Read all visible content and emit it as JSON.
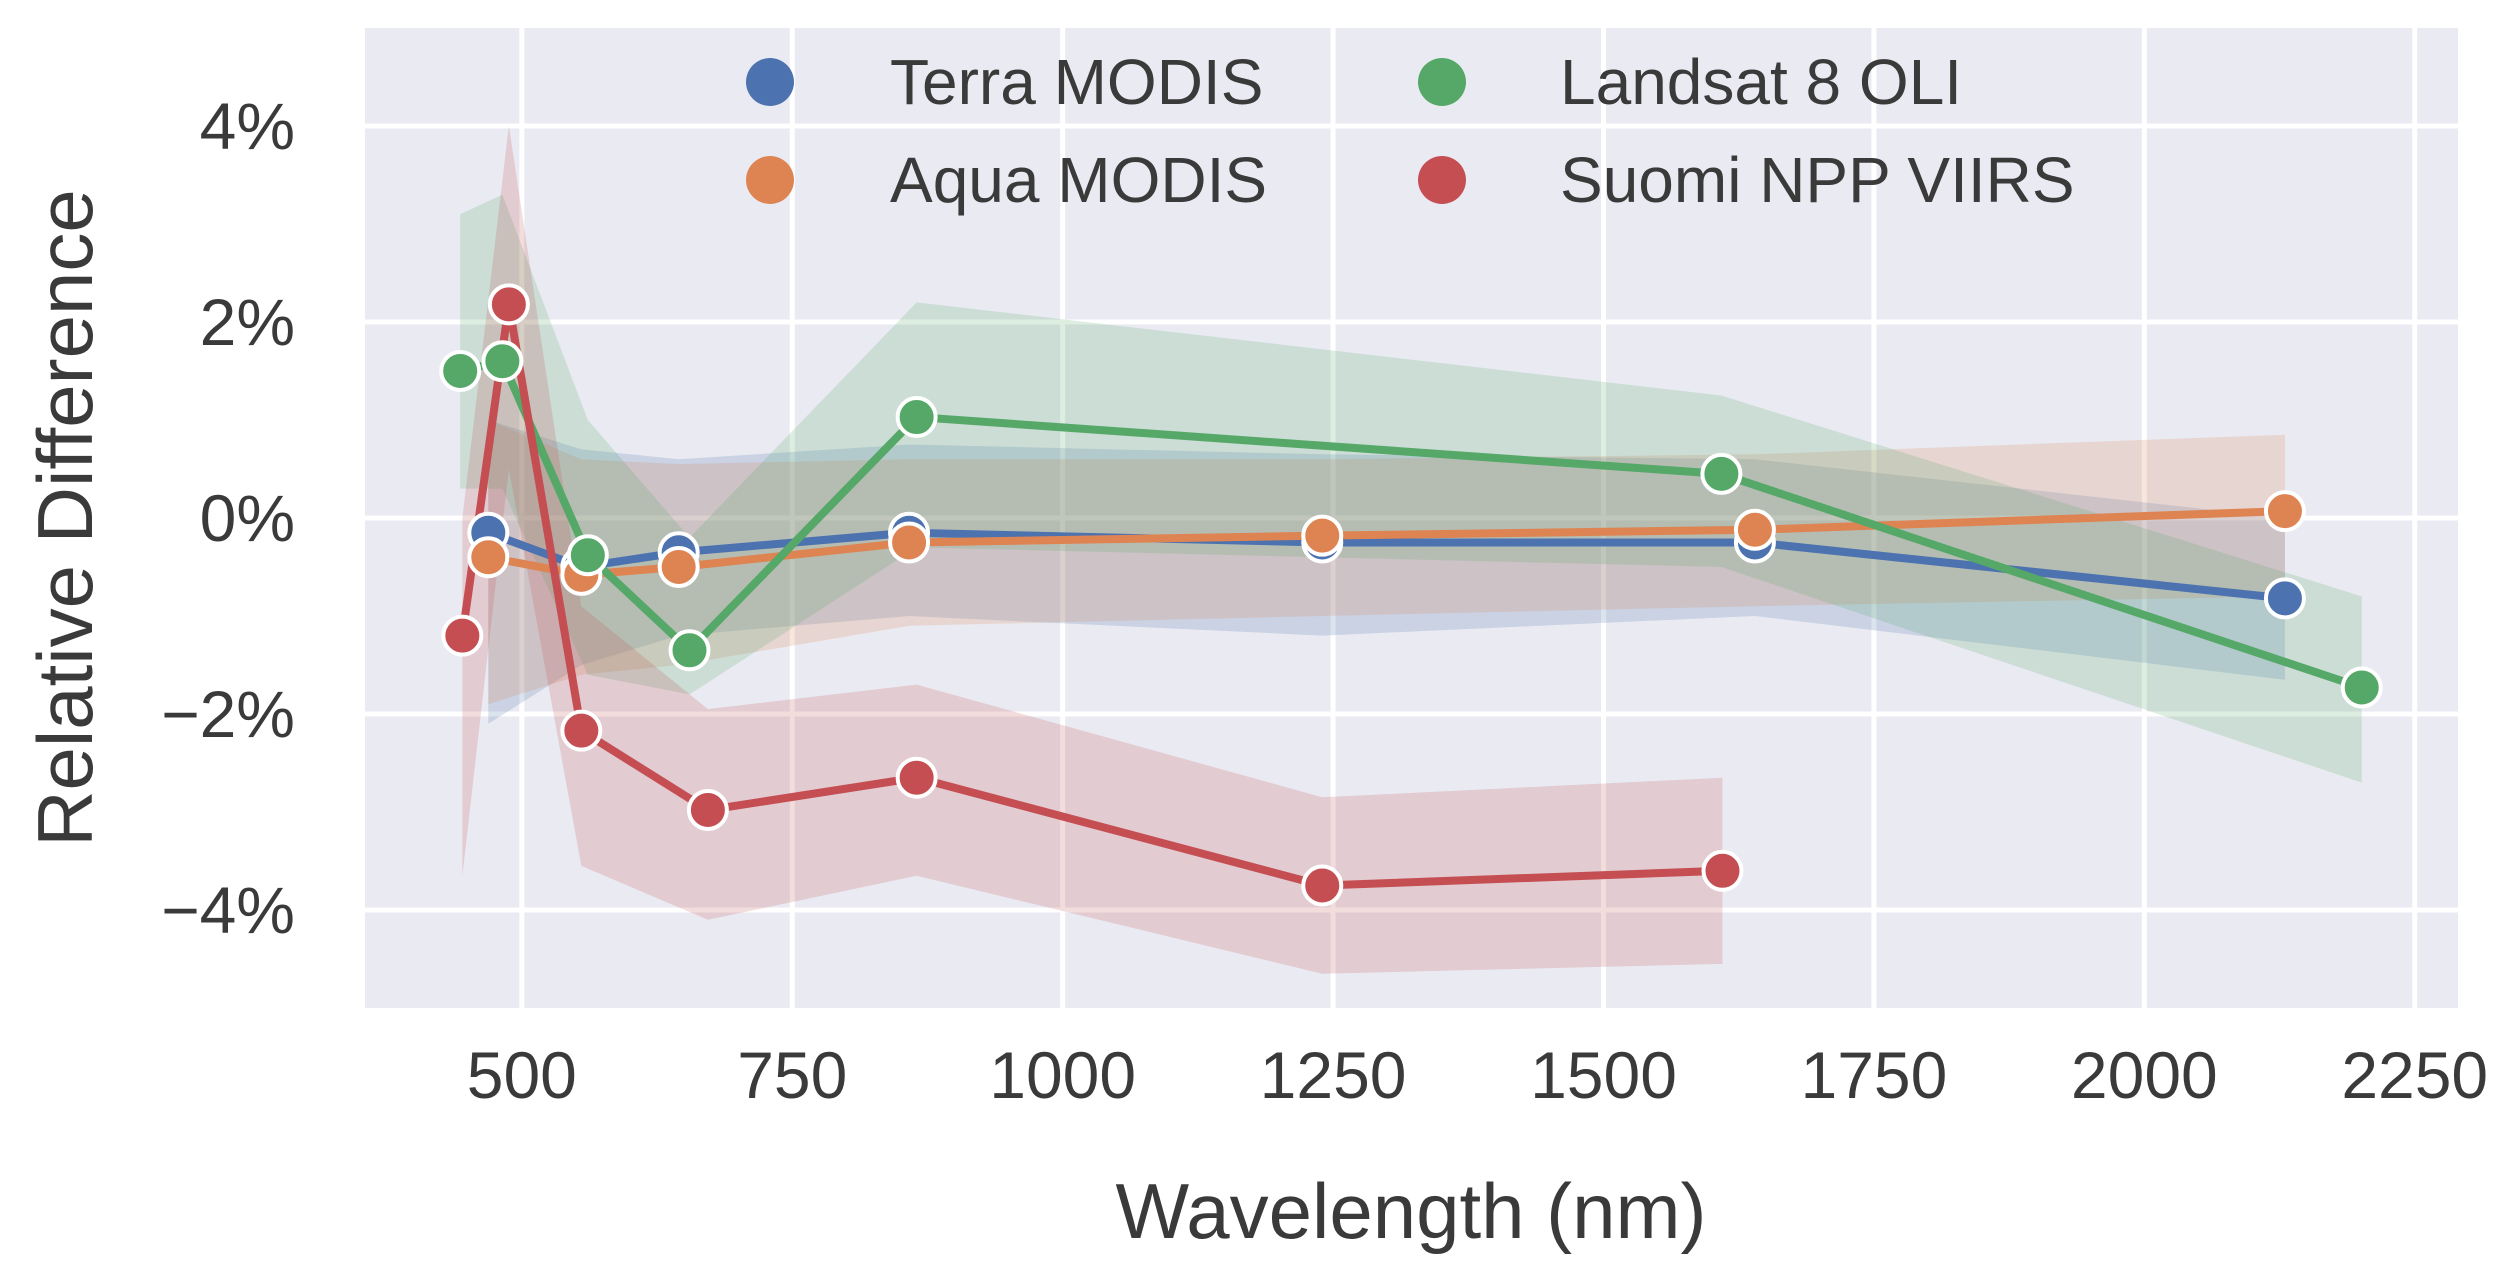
{
  "chart_data": {
    "type": "line",
    "title": "",
    "xlabel": "Wavelength (nm)",
    "ylabel": "Relative Difference",
    "xlim": [
      355,
      2290
    ],
    "ylim": [
      -5.0,
      5.0
    ],
    "xticks": [
      500,
      750,
      1000,
      1250,
      1500,
      1750,
      2000,
      2250
    ],
    "xtick_labels": [
      "500",
      "750",
      "1000",
      "1250",
      "1500",
      "1750",
      "2000",
      "2250"
    ],
    "yticks": [
      -4,
      -2,
      0,
      2,
      4
    ],
    "ytick_labels": [
      "−4%",
      "−2%",
      "0%",
      "2%",
      "4%"
    ],
    "grid": true,
    "legend_position": "top-center",
    "series": [
      {
        "name": "Terra MODIS",
        "color": "#4c72b0",
        "x": [
          469,
          555,
          645,
          858,
          1240,
          1640,
          2130
        ],
        "y": [
          -0.15,
          -0.5,
          -0.35,
          -0.15,
          -0.25,
          -0.25,
          -0.82
        ],
        "lower": [
          -2.1,
          -1.5,
          -1.2,
          -1.0,
          -1.2,
          -1.0,
          -1.65
        ],
        "upper": [
          1.0,
          0.7,
          0.6,
          0.75,
          0.65,
          0.6,
          0.0
        ]
      },
      {
        "name": "Aqua MODIS",
        "color": "#dd8452",
        "x": [
          469,
          555,
          645,
          858,
          1240,
          1640,
          2130
        ],
        "y": [
          -0.4,
          -0.58,
          -0.5,
          -0.25,
          -0.18,
          -0.12,
          0.07
        ],
        "lower": [
          -1.9,
          -1.6,
          -1.5,
          -1.1,
          -1.0,
          -0.9,
          -0.8
        ],
        "upper": [
          1.0,
          0.6,
          0.55,
          0.6,
          0.6,
          0.65,
          0.85
        ]
      },
      {
        "name": "Landsat 8 OLI",
        "color": "#55a868",
        "x": [
          443,
          482,
          561,
          655,
          865,
          1609,
          2201
        ],
        "y": [
          1.5,
          1.6,
          -0.38,
          -1.35,
          1.03,
          0.45,
          -1.73
        ],
        "lower": [
          0.3,
          0.3,
          -1.6,
          -1.8,
          -0.3,
          -0.5,
          -2.7
        ],
        "upper": [
          3.1,
          3.3,
          1.0,
          -0.2,
          2.2,
          1.25,
          -0.8
        ]
      },
      {
        "name": "Suomi NPP VIIRS",
        "color": "#c44e52",
        "x": [
          445,
          488,
          555,
          672,
          865,
          1240,
          1610
        ],
        "y": [
          -1.2,
          2.18,
          -2.17,
          -2.98,
          -2.65,
          -3.75,
          -3.6
        ],
        "lower": [
          -3.65,
          0.5,
          -3.55,
          -4.1,
          -3.65,
          -4.65,
          -4.55
        ],
        "upper": [
          0.0,
          4.0,
          -0.9,
          -1.95,
          -1.7,
          -2.85,
          -2.65
        ]
      }
    ]
  }
}
